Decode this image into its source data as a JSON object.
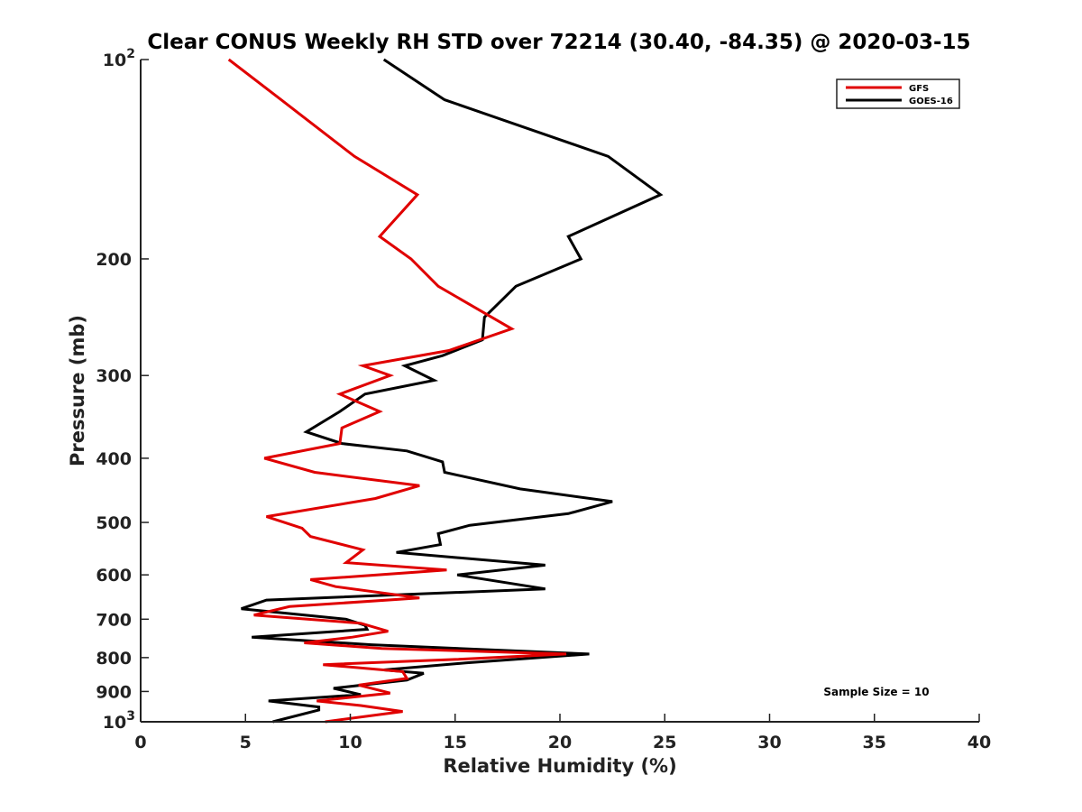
{
  "chart_data": {
    "type": "line",
    "title": "Clear CONUS Weekly RH STD over 72214 (30.40, -84.35) @ 2020-03-15",
    "xlabel": "Relative Humidity (%)",
    "ylabel": "Pressure (mb)",
    "xlim": [
      0,
      40
    ],
    "ylim": [
      100,
      1000
    ],
    "yscale": "log",
    "y_reversed": true,
    "grid": false,
    "legend_position": "top-right",
    "x_ticks": [
      0,
      5,
      10,
      15,
      20,
      25,
      30,
      35,
      40
    ],
    "x_tick_labels": [
      "0",
      "5",
      "10",
      "15",
      "20",
      "25",
      "30",
      "35",
      "40"
    ],
    "y_ticks": [
      {
        "value": 100,
        "label": "10",
        "sup": "2"
      },
      {
        "value": 200,
        "label": "200",
        "sup": ""
      },
      {
        "value": 300,
        "label": "300",
        "sup": ""
      },
      {
        "value": 400,
        "label": "400",
        "sup": ""
      },
      {
        "value": 500,
        "label": "500",
        "sup": ""
      },
      {
        "value": 600,
        "label": "600",
        "sup": ""
      },
      {
        "value": 700,
        "label": "700",
        "sup": ""
      },
      {
        "value": 800,
        "label": "800",
        "sup": ""
      },
      {
        "value": 900,
        "label": "900",
        "sup": ""
      },
      {
        "value": 1000,
        "label": "10",
        "sup": "3"
      }
    ],
    "annotation": "Sample Size = 10",
    "series": [
      {
        "name": "GFS",
        "color": "#e00000",
        "x": [
          4.2,
          6.7,
          10.2,
          13.2,
          11.4,
          12.9,
          14.2,
          17.7,
          14.7,
          10.6,
          11.9,
          9.5,
          11.4,
          9.6,
          9.5,
          5.9,
          8.3,
          13.3,
          11.2,
          6.0,
          7.7,
          8.1,
          10.6,
          9.8,
          14.6,
          8.1,
          9.3,
          13.3,
          7.1,
          5.4,
          10.5,
          11.8,
          10.1,
          7.8,
          11.5,
          20.3,
          15.0,
          8.7,
          12.5,
          12.7,
          10.4,
          11.9,
          8.4,
          10.5,
          12.5,
          8.8
        ],
        "y": [
          100,
          115,
          140,
          160,
          185,
          200,
          220,
          255,
          275,
          290,
          300,
          320,
          340,
          360,
          380,
          400,
          420,
          440,
          460,
          490,
          510,
          525,
          550,
          575,
          590,
          610,
          625,
          650,
          670,
          690,
          710,
          730,
          745,
          760,
          775,
          790,
          805,
          820,
          840,
          860,
          880,
          905,
          930,
          945,
          965,
          1000
        ]
      },
      {
        "name": "GOES-16",
        "color": "#000000",
        "x": [
          11.6,
          14.5,
          22.3,
          24.8,
          20.4,
          21.0,
          17.9,
          16.4,
          16.3,
          14.4,
          12.6,
          14.0,
          10.7,
          9.5,
          7.9,
          9.6,
          12.7,
          14.4,
          14.5,
          18.1,
          22.5,
          20.4,
          15.7,
          14.2,
          14.3,
          12.2,
          19.3,
          15.1,
          19.3,
          6.0,
          4.8,
          9.8,
          10.7,
          10.8,
          5.3,
          11.0,
          21.4,
          15.5,
          11.6,
          13.5,
          12.7,
          9.2,
          10.5,
          6.1,
          8.5,
          8.5,
          6.3
        ],
        "y": [
          100,
          115,
          140,
          160,
          185,
          200,
          220,
          245,
          265,
          280,
          290,
          305,
          320,
          340,
          365,
          380,
          390,
          405,
          420,
          445,
          465,
          485,
          505,
          520,
          540,
          555,
          580,
          600,
          630,
          655,
          675,
          700,
          715,
          725,
          745,
          765,
          790,
          815,
          835,
          845,
          865,
          890,
          910,
          930,
          950,
          960,
          1000
        ]
      }
    ]
  }
}
